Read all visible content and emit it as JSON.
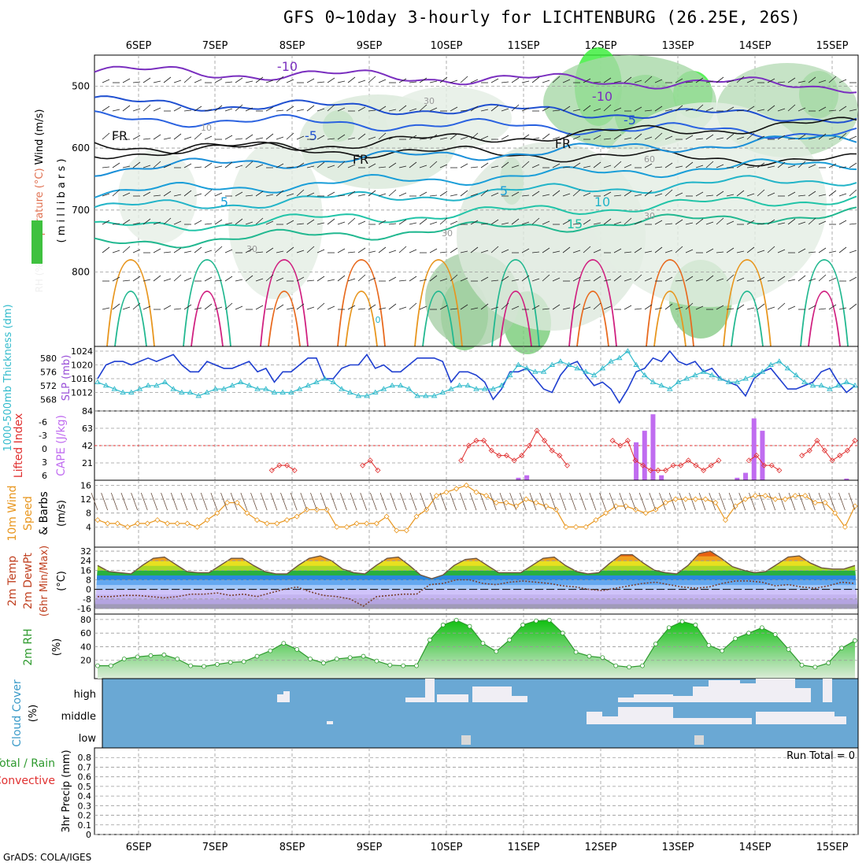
{
  "title": "GFS 0~10day 3-hourly for LICHTENBURG (26.25E, 26S)",
  "credit": "GrADS: COLA/IGES",
  "date_labels": [
    "6SEP",
    "7SEP",
    "8SEP",
    "9SEP",
    "10SEP",
    "11SEP",
    "12SEP",
    "13SEP",
    "14SEP",
    "15SEP"
  ],
  "colors": {
    "rh_green": "#33cc33",
    "slp": "#1f3fd0",
    "thickness": "#33bbcc",
    "cape": "#c06cf0",
    "lifted_index": "#e03030",
    "wind": "#e8961e",
    "temp_fill": "#6e5540",
    "rh2m": "#2e9a2e",
    "cloud": "#6aa8d4",
    "cloud_high": "#f0eef4"
  },
  "chart_data": [
    {
      "type": "heatmap",
      "name_panel": "upper-air",
      "ylabel_parts": [
        "RH (%)",
        "Temperature (°C)",
        "Wind (m/s)"
      ],
      "ylabel_unit": "( m i l l i b a r s )",
      "y_ticks": [
        500,
        600,
        700,
        800
      ],
      "contour_labels": [
        "-10",
        "-10",
        "-5",
        "-5",
        "FR",
        "FR",
        "FR",
        "5",
        "5",
        "10",
        "15",
        "0",
        "10",
        "30",
        "30",
        "30",
        "30",
        "60"
      ],
      "notes": "RH shaded greens, temperature isotherms colored, wind barbs"
    },
    {
      "type": "line",
      "name_panel": "slp-thickness",
      "ylabel_left": "1000-500mb Thickness (dm)",
      "ylabel_right": "SLP (mb)",
      "y_ticks_left": [
        568,
        572,
        576,
        580
      ],
      "y_ticks_right": [
        1012,
        1016,
        1020,
        1024
      ],
      "series": [
        {
          "name": "SLP (mb)",
          "values": [
            1016,
            1020,
            1021,
            1021,
            1020,
            1021,
            1022,
            1021,
            1022,
            1023,
            1020,
            1018,
            1018,
            1021,
            1020,
            1019,
            1019,
            1020,
            1021,
            1018,
            1019,
            1015,
            1018,
            1018,
            1020,
            1022,
            1022,
            1016,
            1016,
            1019,
            1020,
            1020,
            1023,
            1019,
            1020,
            1018,
            1018,
            1020,
            1022,
            1022,
            1022,
            1021,
            1015,
            1018,
            1018,
            1017,
            1015,
            1010,
            1013,
            1018,
            1018,
            1019,
            1016,
            1013,
            1012,
            1017,
            1020,
            1021,
            1017,
            1014,
            1015,
            1013,
            1009,
            1013,
            1018,
            1019,
            1022,
            1021,
            1024,
            1021,
            1020,
            1021,
            1018,
            1019,
            1016,
            1015,
            1014,
            1011,
            1016,
            1018,
            1019,
            1016,
            1013,
            1013,
            1014,
            1015,
            1018,
            1019,
            1015,
            1012,
            1014
          ]
        },
        {
          "name": "Thickness (dm)",
          "values": [
            573,
            572,
            571,
            570,
            570,
            571,
            572,
            572,
            573,
            571,
            570,
            570,
            569,
            570,
            571,
            571,
            572,
            573,
            572,
            571,
            571,
            570,
            570,
            570,
            571,
            572,
            573,
            574,
            573,
            571,
            570,
            569,
            569,
            570,
            571,
            572,
            572,
            571,
            569,
            569,
            569,
            570,
            571,
            572,
            572,
            571,
            571,
            571,
            572,
            575,
            578,
            577,
            576,
            576,
            578,
            579,
            578,
            577,
            576,
            575,
            577,
            579,
            580,
            582,
            578,
            575,
            573,
            572,
            571,
            573,
            574,
            575,
            576,
            575,
            574,
            573,
            573,
            574,
            575,
            576,
            578,
            579,
            577,
            575,
            573,
            572,
            572,
            571,
            572,
            573,
            572
          ]
        }
      ]
    },
    {
      "type": "bar",
      "name_panel": "cape-li",
      "ylabel_left": "Lifted Index",
      "ylabel_right": "CAPE (J/kg)",
      "y_ticks_left": [
        "-6",
        "-3",
        "0",
        "3",
        "6"
      ],
      "y_ticks_right": [
        21,
        42,
        63,
        84
      ],
      "series": [
        {
          "name": "CAPE (J/kg)",
          "values": [
            0,
            0,
            0,
            0,
            0,
            0,
            0,
            0,
            0,
            0,
            0,
            0,
            0,
            0,
            0,
            0,
            0,
            0,
            0,
            0,
            0,
            0,
            0,
            0,
            0,
            0,
            0,
            0,
            0,
            0,
            0,
            0,
            0,
            0,
            0,
            0,
            0,
            0,
            0,
            0,
            0,
            0,
            0,
            0,
            0,
            0,
            0,
            0,
            0,
            0,
            3,
            6,
            0,
            0,
            0,
            0,
            0,
            0,
            0,
            0,
            0,
            0,
            0,
            0,
            46,
            60,
            80,
            6,
            0,
            0,
            0,
            0,
            0,
            0,
            0,
            0,
            3,
            9,
            75,
            60,
            0,
            0,
            0,
            0,
            0,
            0,
            0,
            0,
            0,
            2,
            0
          ]
        },
        {
          "name": "Lifted Index",
          "values": [
            6,
            6,
            6,
            6,
            6,
            6,
            6,
            6,
            6,
            6,
            6,
            6,
            6,
            6,
            6,
            6,
            6,
            6,
            6,
            6,
            6,
            6,
            6,
            5,
            4,
            4,
            5,
            6,
            6,
            6,
            6,
            6,
            6,
            6,
            6,
            4,
            3,
            5,
            6,
            6,
            6,
            6,
            6,
            6,
            6,
            6,
            6,
            6,
            3,
            0,
            -1,
            -1,
            1,
            2,
            2,
            3,
            2,
            0,
            -3,
            -1,
            1,
            2,
            4,
            6,
            6,
            6,
            6,
            6,
            -1,
            0,
            -1,
            3,
            4,
            5,
            5,
            5,
            4,
            4,
            3,
            4,
            5,
            4,
            3,
            6,
            6,
            6,
            3,
            2,
            4,
            4,
            5,
            6,
            6,
            2,
            1,
            -1,
            1,
            3,
            2,
            1,
            -1
          ]
        }
      ]
    },
    {
      "type": "line",
      "name_panel": "wind10m",
      "ylabel": "10m Wind Speed (m/s) & Barbs",
      "y_ticks": [
        4,
        8,
        12,
        16
      ],
      "series": [
        {
          "name": "10m Wind Speed",
          "values": [
            6,
            5,
            5,
            4,
            5,
            5,
            6,
            5,
            5,
            5,
            4,
            6,
            8,
            11,
            11,
            8,
            6,
            5,
            5,
            6,
            7,
            9,
            9,
            9,
            4,
            4,
            5,
            5,
            5,
            7,
            3,
            3,
            7,
            9,
            13,
            14,
            15,
            16,
            14,
            13,
            11,
            11,
            10,
            12,
            11,
            10,
            9,
            4,
            4,
            4,
            6,
            8,
            10,
            10,
            9,
            8,
            9,
            11,
            12,
            12,
            12,
            12,
            11,
            6,
            10,
            12,
            13,
            13,
            12,
            12,
            13,
            13,
            11,
            11,
            8,
            4,
            10
          ]
        }
      ]
    },
    {
      "type": "area",
      "name_panel": "temp2m",
      "ylabel": "2m Temp 2m DewPt (6hr Min/Max) (°C)",
      "y_ticks": [
        -16,
        -8,
        0,
        8,
        16,
        24,
        32
      ],
      "series": [
        {
          "name": "2m Temp",
          "values": [
            20,
            15,
            14,
            13,
            20,
            26,
            27,
            21,
            15,
            14,
            14,
            20,
            26,
            26,
            20,
            15,
            13,
            13,
            20,
            26,
            28,
            24,
            17,
            14,
            13,
            20,
            26,
            27,
            20,
            12,
            9,
            12,
            20,
            25,
            26,
            20,
            14,
            14,
            14,
            20,
            26,
            27,
            20,
            15,
            13,
            14,
            22,
            29,
            29,
            22,
            16,
            14,
            13,
            20,
            30,
            32,
            26,
            19,
            16,
            14,
            15,
            21,
            27,
            28,
            22,
            18,
            17,
            17,
            20
          ]
        },
        {
          "name": "2m DewPt",
          "values": [
            -6,
            -6,
            -5,
            -5,
            -6,
            -7,
            -6,
            -4,
            -4,
            -3,
            -5,
            -4,
            -6,
            -3,
            0,
            2,
            -2,
            -5,
            -6,
            -8,
            -14,
            -6,
            -5,
            -4,
            -4,
            4,
            5,
            8,
            8,
            5,
            4,
            6,
            7,
            6,
            5,
            3,
            2,
            0,
            -1,
            1,
            3,
            5,
            6,
            4,
            2,
            1,
            2,
            5,
            7,
            7,
            6,
            3,
            4,
            2,
            1,
            3,
            6,
            5
          ]
        }
      ]
    },
    {
      "type": "area",
      "name_panel": "rh2m",
      "ylabel": "2m RH (%)",
      "y_ticks": [
        20,
        40,
        60,
        80
      ],
      "series": [
        {
          "name": "2m RH",
          "values": [
            12,
            12,
            22,
            25,
            27,
            28,
            22,
            12,
            11,
            14,
            17,
            18,
            26,
            34,
            45,
            36,
            22,
            16,
            22,
            24,
            26,
            19,
            13,
            12,
            12,
            50,
            72,
            79,
            70,
            45,
            33,
            50,
            72,
            78,
            79,
            60,
            32,
            26,
            24,
            12,
            10,
            12,
            44,
            68,
            77,
            72,
            42,
            34,
            52,
            60,
            68,
            58,
            36,
            13,
            10,
            16,
            38,
            49
          ]
        }
      ]
    },
    {
      "type": "heatmap",
      "name_panel": "cloud",
      "ylabel": "Cloud Cover (%)",
      "row_labels": [
        "high",
        "middle",
        "low"
      ]
    },
    {
      "type": "bar",
      "name_panel": "precip",
      "ylabel_parts": [
        "Total / Rain",
        "Convective",
        "3hr Precip (mm)"
      ],
      "y_ticks": [
        0,
        0.2,
        0.4,
        0.6,
        0.8
      ],
      "annotation": "Run Total = 0",
      "values": []
    }
  ]
}
